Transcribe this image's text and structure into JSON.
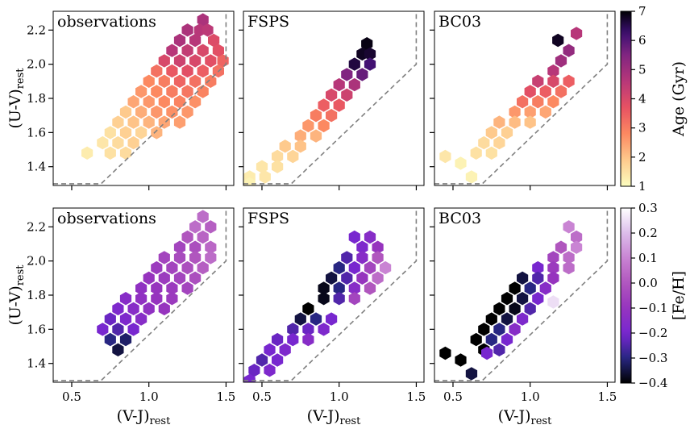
{
  "figure": {
    "x_axis_label": "(V-J)",
    "x_axis_label_sub": "rest",
    "y_axis_label": "(U-V)",
    "y_axis_label_sub": "rest",
    "x_ticks": [
      "0.5",
      "1.0",
      "1.5"
    ],
    "y_ticks": [
      "1.4",
      "1.6",
      "1.8",
      "2.0",
      "2.2"
    ]
  },
  "colorbars": [
    {
      "label": "Age (Gyr)",
      "colormap": "magma_r",
      "range": [
        1,
        7
      ],
      "ticks": [
        "1",
        "2",
        "3",
        "4",
        "5",
        "6",
        "7"
      ]
    },
    {
      "label": "[Fe/H]",
      "colormap": "CMRmap",
      "range": [
        -0.4,
        0.3
      ],
      "ticks": [
        "−0.4",
        "−0.3",
        "−0.2",
        "−0.1",
        "0.0",
        "0.1",
        "0.2",
        "0.3"
      ]
    }
  ],
  "chart_data": [
    {
      "type": "heatmap",
      "subtype": "hexbin",
      "title": "observations",
      "color_by": "Age (Gyr)",
      "xlim": [
        0.38,
        1.55
      ],
      "ylim": [
        1.29,
        2.31
      ],
      "selection_boundary": [
        [
          0.38,
          1.3
        ],
        [
          0.69,
          1.3
        ],
        [
          1.5,
          2.0
        ],
        [
          1.5,
          2.31
        ]
      ],
      "bins": [
        [
          1.35,
          2.26,
          4.8
        ],
        [
          1.33,
          2.2,
          4.6
        ],
        [
          1.25,
          2.2,
          4.8
        ],
        [
          1.38,
          2.2,
          4.5
        ],
        [
          1.42,
          2.14,
          3.9
        ],
        [
          1.3,
          2.14,
          4.6
        ],
        [
          1.2,
          2.14,
          4.8
        ],
        [
          1.35,
          2.08,
          4.0
        ],
        [
          1.45,
          2.08,
          3.8
        ],
        [
          1.25,
          2.08,
          4.4
        ],
        [
          1.15,
          2.08,
          4.6
        ],
        [
          1.48,
          2.02,
          3.4
        ],
        [
          1.4,
          2.02,
          3.8
        ],
        [
          1.3,
          2.02,
          4.0
        ],
        [
          1.2,
          2.02,
          4.2
        ],
        [
          1.1,
          2.02,
          4.0
        ],
        [
          1.05,
          1.96,
          3.2
        ],
        [
          1.15,
          1.96,
          3.6
        ],
        [
          1.25,
          1.96,
          3.8
        ],
        [
          1.35,
          1.96,
          3.5
        ],
        [
          1.45,
          1.96,
          3.2
        ],
        [
          1.4,
          1.9,
          3.0
        ],
        [
          1.3,
          1.9,
          3.2
        ],
        [
          1.2,
          1.9,
          3.4
        ],
        [
          1.1,
          1.9,
          3.0
        ],
        [
          1.0,
          1.9,
          2.8
        ],
        [
          0.95,
          1.84,
          2.6
        ],
        [
          1.05,
          1.84,
          2.8
        ],
        [
          1.15,
          1.84,
          3.0
        ],
        [
          1.25,
          1.84,
          3.1
        ],
        [
          1.35,
          1.84,
          2.9
        ],
        [
          1.3,
          1.78,
          2.7
        ],
        [
          1.2,
          1.78,
          2.9
        ],
        [
          1.1,
          1.78,
          2.8
        ],
        [
          1.0,
          1.78,
          2.6
        ],
        [
          0.9,
          1.78,
          2.4
        ],
        [
          0.85,
          1.72,
          1.9
        ],
        [
          0.95,
          1.72,
          2.3
        ],
        [
          1.05,
          1.72,
          2.6
        ],
        [
          1.15,
          1.72,
          2.7
        ],
        [
          1.25,
          1.72,
          2.6
        ],
        [
          0.8,
          1.66,
          1.8
        ],
        [
          0.9,
          1.66,
          2.0
        ],
        [
          1.0,
          1.66,
          2.2
        ],
        [
          1.1,
          1.66,
          2.4
        ],
        [
          1.2,
          1.66,
          2.5
        ],
        [
          0.75,
          1.6,
          1.5
        ],
        [
          0.85,
          1.6,
          1.8
        ],
        [
          0.95,
          1.6,
          1.7
        ],
        [
          1.05,
          1.6,
          2.2
        ],
        [
          0.7,
          1.54,
          1.4
        ],
        [
          0.8,
          1.54,
          1.6
        ],
        [
          0.9,
          1.54,
          1.8
        ],
        [
          0.6,
          1.48,
          1.3
        ],
        [
          0.75,
          1.48,
          1.5
        ],
        [
          0.85,
          1.48,
          1.6
        ]
      ]
    },
    {
      "type": "heatmap",
      "subtype": "hexbin",
      "title": "FSPS",
      "color_by": "Age (Gyr)",
      "xlim": [
        0.38,
        1.55
      ],
      "ylim": [
        1.29,
        2.31
      ],
      "selection_boundary": [
        [
          0.38,
          1.3
        ],
        [
          0.69,
          1.3
        ],
        [
          1.5,
          2.0
        ],
        [
          1.5,
          2.31
        ]
      ],
      "bins": [
        [
          1.18,
          2.12,
          6.9
        ],
        [
          1.15,
          2.06,
          6.8
        ],
        [
          1.2,
          2.06,
          6.7
        ],
        [
          1.1,
          2.0,
          6.6
        ],
        [
          1.2,
          2.0,
          6.2
        ],
        [
          1.15,
          1.94,
          5.8
        ],
        [
          1.05,
          1.94,
          5.5
        ],
        [
          1.1,
          1.88,
          4.8
        ],
        [
          1.0,
          1.88,
          4.6
        ],
        [
          0.95,
          1.82,
          4.0
        ],
        [
          1.05,
          1.82,
          4.2
        ],
        [
          0.9,
          1.76,
          3.5
        ],
        [
          1.0,
          1.76,
          3.6
        ],
        [
          0.85,
          1.7,
          3.0
        ],
        [
          0.95,
          1.7,
          3.2
        ],
        [
          0.8,
          1.64,
          2.6
        ],
        [
          0.9,
          1.64,
          2.8
        ],
        [
          0.75,
          1.58,
          2.3
        ],
        [
          0.85,
          1.58,
          2.2
        ],
        [
          0.65,
          1.52,
          1.9
        ],
        [
          0.75,
          1.52,
          2.0
        ],
        [
          0.6,
          1.46,
          1.6
        ],
        [
          0.7,
          1.46,
          1.7
        ],
        [
          0.5,
          1.4,
          1.4
        ],
        [
          0.6,
          1.4,
          1.5
        ],
        [
          0.42,
          1.34,
          1.3
        ],
        [
          0.52,
          1.34,
          1.4
        ],
        [
          0.42,
          1.3,
          1.2
        ]
      ]
    },
    {
      "type": "heatmap",
      "subtype": "hexbin",
      "title": "BC03",
      "color_by": "Age (Gyr)",
      "xlim": [
        0.38,
        1.55
      ],
      "ylim": [
        1.29,
        2.31
      ],
      "selection_boundary": [
        [
          0.38,
          1.3
        ],
        [
          0.69,
          1.3
        ],
        [
          1.5,
          2.0
        ],
        [
          1.5,
          2.31
        ]
      ],
      "bins": [
        [
          1.3,
          2.18,
          4.6
        ],
        [
          1.18,
          2.14,
          6.8
        ],
        [
          1.25,
          2.08,
          5.2
        ],
        [
          1.2,
          2.02,
          5.0
        ],
        [
          1.15,
          1.96,
          4.6
        ],
        [
          1.05,
          1.9,
          4.3
        ],
        [
          1.15,
          1.9,
          4.0
        ],
        [
          1.25,
          1.9,
          3.5
        ],
        [
          1.0,
          1.84,
          3.8
        ],
        [
          1.1,
          1.84,
          3.5
        ],
        [
          1.2,
          1.84,
          3.2
        ],
        [
          0.95,
          1.78,
          3.2
        ],
        [
          1.05,
          1.78,
          3.0
        ],
        [
          1.15,
          1.78,
          2.8
        ],
        [
          0.9,
          1.72,
          2.6
        ],
        [
          1.0,
          1.72,
          2.5
        ],
        [
          1.1,
          1.72,
          2.4
        ],
        [
          0.8,
          1.66,
          2.2
        ],
        [
          0.9,
          1.66,
          2.1
        ],
        [
          1.0,
          1.66,
          2.0
        ],
        [
          0.75,
          1.6,
          1.9
        ],
        [
          0.85,
          1.6,
          1.8
        ],
        [
          0.7,
          1.54,
          1.6
        ],
        [
          0.8,
          1.54,
          1.7
        ],
        [
          0.65,
          1.48,
          1.5
        ],
        [
          0.75,
          1.48,
          1.5
        ],
        [
          0.45,
          1.46,
          1.4
        ],
        [
          0.55,
          1.42,
          1.2
        ],
        [
          0.62,
          1.34,
          1.2
        ]
      ]
    },
    {
      "type": "heatmap",
      "subtype": "hexbin",
      "title": "observations",
      "color_by": "[Fe/H]",
      "xlim": [
        0.38,
        1.55
      ],
      "ylim": [
        1.29,
        2.31
      ],
      "selection_boundary": [
        [
          0.38,
          1.3
        ],
        [
          0.69,
          1.3
        ],
        [
          1.5,
          2.0
        ],
        [
          1.5,
          2.31
        ]
      ],
      "bins": [
        [
          1.35,
          2.26,
          0.05
        ],
        [
          1.3,
          2.2,
          0.05
        ],
        [
          1.4,
          2.2,
          0.02
        ],
        [
          1.25,
          2.14,
          0.0
        ],
        [
          1.35,
          2.14,
          0.03
        ],
        [
          1.2,
          2.08,
          -0.05
        ],
        [
          1.3,
          2.08,
          -0.02
        ],
        [
          1.4,
          2.08,
          0.04
        ],
        [
          1.1,
          2.02,
          -0.05
        ],
        [
          1.2,
          2.02,
          -0.03
        ],
        [
          1.3,
          2.02,
          0.0
        ],
        [
          1.4,
          2.02,
          0.05
        ],
        [
          1.05,
          1.96,
          -0.08
        ],
        [
          1.15,
          1.96,
          -0.05
        ],
        [
          1.25,
          1.96,
          -0.02
        ],
        [
          1.35,
          1.96,
          0.02
        ],
        [
          1.0,
          1.9,
          -0.1
        ],
        [
          1.1,
          1.9,
          -0.08
        ],
        [
          1.2,
          1.9,
          -0.05
        ],
        [
          1.3,
          1.9,
          -0.02
        ],
        [
          0.95,
          1.84,
          -0.12
        ],
        [
          1.05,
          1.84,
          -0.1
        ],
        [
          1.15,
          1.84,
          -0.08
        ],
        [
          1.25,
          1.84,
          -0.05
        ],
        [
          0.85,
          1.78,
          -0.15
        ],
        [
          0.95,
          1.78,
          -0.12
        ],
        [
          1.05,
          1.78,
          -0.1
        ],
        [
          1.15,
          1.78,
          -0.08
        ],
        [
          0.8,
          1.72,
          -0.18
        ],
        [
          0.9,
          1.72,
          -0.15
        ],
        [
          1.0,
          1.72,
          -0.12
        ],
        [
          1.1,
          1.72,
          -0.1
        ],
        [
          0.75,
          1.66,
          -0.22
        ],
        [
          0.85,
          1.66,
          -0.18
        ],
        [
          0.95,
          1.66,
          -0.15
        ],
        [
          0.7,
          1.6,
          -0.2
        ],
        [
          0.8,
          1.6,
          -0.25
        ],
        [
          0.9,
          1.6,
          -0.2
        ],
        [
          0.75,
          1.54,
          -0.3
        ],
        [
          0.85,
          1.54,
          -0.32
        ],
        [
          0.8,
          1.48,
          -0.35
        ]
      ]
    },
    {
      "type": "heatmap",
      "subtype": "hexbin",
      "title": "FSPS",
      "color_by": "[Fe/H]",
      "xlim": [
        0.38,
        1.55
      ],
      "ylim": [
        1.29,
        2.31
      ],
      "selection_boundary": [
        [
          0.38,
          1.3
        ],
        [
          0.69,
          1.3
        ],
        [
          1.5,
          2.0
        ],
        [
          1.5,
          2.31
        ]
      ],
      "bins": [
        [
          1.1,
          2.14,
          -0.2
        ],
        [
          1.2,
          2.14,
          -0.15
        ],
        [
          1.15,
          2.08,
          -0.18
        ],
        [
          1.25,
          2.08,
          -0.1
        ],
        [
          1.05,
          2.02,
          -0.25
        ],
        [
          1.15,
          2.02,
          -0.15
        ],
        [
          1.25,
          2.02,
          0.0
        ],
        [
          1.0,
          1.96,
          -0.3
        ],
        [
          1.1,
          1.96,
          -0.2
        ],
        [
          1.2,
          1.96,
          -0.05
        ],
        [
          1.3,
          1.96,
          0.1
        ],
        [
          0.95,
          1.9,
          -0.35
        ],
        [
          1.05,
          1.9,
          -0.25
        ],
        [
          1.15,
          1.9,
          -0.1
        ],
        [
          1.25,
          1.9,
          0.05
        ],
        [
          0.9,
          1.84,
          -0.38
        ],
        [
          1.0,
          1.84,
          -0.3
        ],
        [
          1.1,
          1.84,
          -0.15
        ],
        [
          1.2,
          1.84,
          0.0
        ],
        [
          0.8,
          1.72,
          -0.4
        ],
        [
          0.9,
          1.78,
          -0.38
        ],
        [
          1.0,
          1.78,
          -0.25
        ],
        [
          1.1,
          1.78,
          -0.05
        ],
        [
          0.75,
          1.66,
          -0.35
        ],
        [
          0.85,
          1.66,
          -0.3
        ],
        [
          0.95,
          1.66,
          -0.2
        ],
        [
          0.7,
          1.6,
          -0.25
        ],
        [
          0.8,
          1.6,
          -0.22
        ],
        [
          0.9,
          1.6,
          -0.18
        ],
        [
          0.6,
          1.54,
          -0.22
        ],
        [
          0.7,
          1.54,
          -0.2
        ],
        [
          0.8,
          1.54,
          -0.15
        ],
        [
          0.55,
          1.48,
          -0.2
        ],
        [
          0.65,
          1.48,
          -0.18
        ],
        [
          0.5,
          1.42,
          -0.25
        ],
        [
          0.6,
          1.42,
          -0.2
        ],
        [
          0.45,
          1.36,
          -0.22
        ],
        [
          0.55,
          1.36,
          -0.18
        ],
        [
          0.42,
          1.3,
          -0.2
        ]
      ]
    },
    {
      "type": "heatmap",
      "subtype": "hexbin",
      "title": "BC03",
      "color_by": "[Fe/H]",
      "xlim": [
        0.38,
        1.55
      ],
      "ylim": [
        1.29,
        2.31
      ],
      "selection_boundary": [
        [
          0.38,
          1.3
        ],
        [
          0.69,
          1.3
        ],
        [
          1.5,
          2.0
        ],
        [
          1.5,
          2.31
        ]
      ],
      "bins": [
        [
          1.25,
          2.2,
          0.1
        ],
        [
          1.3,
          2.14,
          0.05
        ],
        [
          1.2,
          2.08,
          0.0
        ],
        [
          1.3,
          2.08,
          0.1
        ],
        [
          1.15,
          2.02,
          -0.05
        ],
        [
          1.25,
          2.02,
          0.05
        ],
        [
          1.05,
          1.96,
          -0.2
        ],
        [
          1.15,
          1.96,
          -0.08
        ],
        [
          1.25,
          1.96,
          0.05
        ],
        [
          0.95,
          1.9,
          -0.35
        ],
        [
          1.05,
          1.9,
          -0.25
        ],
        [
          1.15,
          1.9,
          -0.1
        ],
        [
          0.9,
          1.84,
          -0.4
        ],
        [
          1.0,
          1.84,
          -0.3
        ],
        [
          1.1,
          1.84,
          -0.15
        ],
        [
          0.85,
          1.78,
          -0.4
        ],
        [
          0.95,
          1.78,
          -0.35
        ],
        [
          1.05,
          1.78,
          -0.2
        ],
        [
          1.15,
          1.76,
          0.25
        ],
        [
          0.8,
          1.72,
          -0.4
        ],
        [
          0.9,
          1.72,
          -0.38
        ],
        [
          1.0,
          1.72,
          -0.25
        ],
        [
          0.75,
          1.66,
          -0.4
        ],
        [
          0.85,
          1.66,
          -0.35
        ],
        [
          0.95,
          1.66,
          -0.18
        ],
        [
          0.7,
          1.6,
          -0.4
        ],
        [
          0.8,
          1.6,
          -0.3
        ],
        [
          0.9,
          1.6,
          -0.15
        ],
        [
          0.65,
          1.54,
          -0.4
        ],
        [
          0.75,
          1.54,
          -0.3
        ],
        [
          0.85,
          1.54,
          -0.2
        ],
        [
          0.7,
          1.48,
          -0.4
        ],
        [
          0.8,
          1.48,
          -0.25
        ],
        [
          0.45,
          1.46,
          -0.4
        ],
        [
          0.55,
          1.42,
          -0.4
        ],
        [
          0.62,
          1.34,
          -0.35
        ],
        [
          0.72,
          1.46,
          -0.2
        ]
      ]
    }
  ]
}
